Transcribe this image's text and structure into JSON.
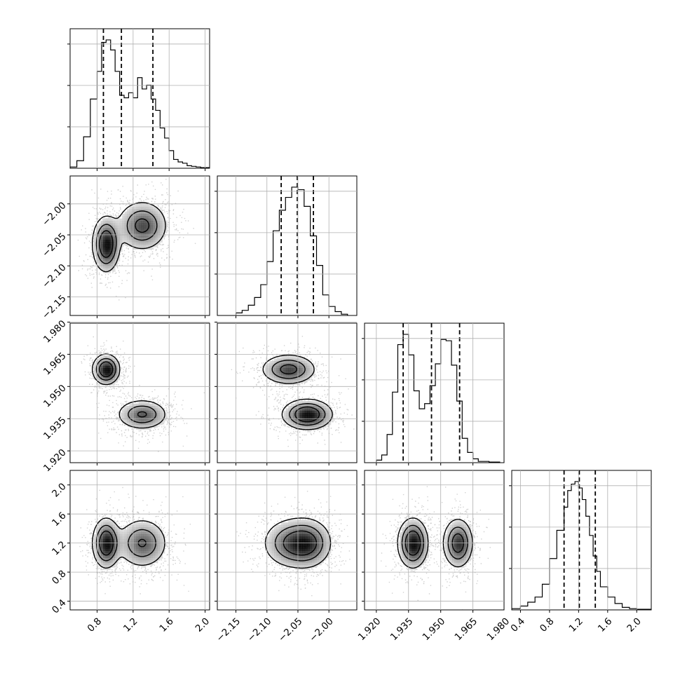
{
  "chart_data": {
    "type": "corner",
    "title": "",
    "grid": true,
    "n_params": 4,
    "params": [
      {
        "range": [
          0.5,
          2.05
        ],
        "ticks": [
          0.8,
          1.2,
          1.6,
          2.0
        ],
        "tick_labels": [
          "0.8",
          "1.2",
          "1.6",
          "2.0"
        ],
        "quantiles": [
          0.87,
          1.07,
          1.42
        ],
        "hist_bin_edges": [
          0.5,
          0.575,
          0.65,
          0.725,
          0.8,
          0.85,
          0.9,
          0.95,
          1.0,
          1.05,
          1.1,
          1.15,
          1.2,
          1.25,
          1.3,
          1.35,
          1.4,
          1.45,
          1.5,
          1.55,
          1.6,
          1.65,
          1.7,
          1.75,
          1.8,
          1.85,
          1.9,
          1.95,
          2.05
        ],
        "hist_counts": [
          0.01,
          0.06,
          0.25,
          0.55,
          0.77,
          1.0,
          1.02,
          0.94,
          0.77,
          0.58,
          0.56,
          0.6,
          0.56,
          0.72,
          0.63,
          0.66,
          0.55,
          0.46,
          0.32,
          0.24,
          0.14,
          0.07,
          0.05,
          0.04,
          0.02,
          0.015,
          0.01,
          0.005
        ]
      },
      {
        "range": [
          -2.18,
          -1.955
        ],
        "ticks": [
          -2.15,
          -2.1,
          -2.05,
          -2.0
        ],
        "tick_labels": [
          "−2.15",
          "−2.10",
          "−2.05",
          "−2.00"
        ],
        "quantiles": [
          -2.077,
          -2.051,
          -2.025
        ],
        "hist_bin_edges": [
          -2.15,
          -2.14,
          -2.13,
          -2.12,
          -2.11,
          -2.1,
          -2.09,
          -2.08,
          -2.07,
          -2.06,
          -2.05,
          -2.04,
          -2.03,
          -2.02,
          -2.01,
          -2.0,
          -1.99,
          -1.98,
          -1.97
        ],
        "hist_counts": [
          0.02,
          0.04,
          0.08,
          0.14,
          0.24,
          0.42,
          0.66,
          0.82,
          0.92,
          1.0,
          0.98,
          0.85,
          0.62,
          0.39,
          0.16,
          0.07,
          0.03,
          0.01
        ]
      },
      {
        "range": [
          1.9145,
          1.9795
        ],
        "ticks": [
          1.92,
          1.935,
          1.95,
          1.965,
          1.98
        ],
        "tick_labels": [
          "1.920",
          "1.935",
          "1.950",
          "1.965",
          "1.980"
        ],
        "quantiles": [
          1.9325,
          1.9457,
          1.9588
        ],
        "hist_bin_edges": [
          1.92,
          1.9225,
          1.925,
          1.9275,
          1.93,
          1.9325,
          1.935,
          1.9375,
          1.94,
          1.9425,
          1.945,
          1.9475,
          1.95,
          1.9525,
          1.955,
          1.9575,
          1.96,
          1.9625,
          1.965,
          1.9675,
          1.97,
          1.9725,
          1.975,
          1.9775
        ],
        "hist_counts": [
          0.02,
          0.06,
          0.22,
          0.55,
          0.92,
          1.0,
          0.84,
          0.56,
          0.42,
          0.46,
          0.6,
          0.77,
          0.96,
          0.95,
          0.76,
          0.48,
          0.19,
          0.08,
          0.03,
          0.01,
          0.01,
          0.005,
          0.005
        ]
      },
      {
        "range": [
          0.28,
          2.2
        ],
        "ticks": [
          0.4,
          0.8,
          1.2,
          1.6,
          2.0
        ],
        "tick_labels": [
          "0.4",
          "0.8",
          "1.2",
          "1.6",
          "2.0"
        ],
        "quantiles": [
          1.0,
          1.21,
          1.43
        ],
        "hist_bin_edges": [
          0.28,
          0.4,
          0.5,
          0.6,
          0.7,
          0.8,
          0.9,
          1.0,
          1.05,
          1.1,
          1.15,
          1.2,
          1.25,
          1.3,
          1.35,
          1.4,
          1.45,
          1.5,
          1.6,
          1.7,
          1.8,
          1.9,
          2.0,
          2.2
        ],
        "hist_counts": [
          0.01,
          0.03,
          0.06,
          0.1,
          0.2,
          0.4,
          0.62,
          0.8,
          0.93,
          0.98,
          1.0,
          0.95,
          0.86,
          0.73,
          0.58,
          0.42,
          0.3,
          0.18,
          0.1,
          0.05,
          0.02,
          0.01,
          0.005
        ]
      }
    ],
    "components": [
      {
        "weight": 0.45,
        "mean": [
          0.9,
          -2.065,
          1.958,
          1.2
        ],
        "sd": [
          0.075,
          0.022,
          0.0035,
          0.17
        ]
      },
      {
        "weight": 0.55,
        "mean": [
          1.3,
          -2.035,
          1.937,
          1.2
        ],
        "sd": [
          0.14,
          0.02,
          0.0035,
          0.17
        ]
      }
    ],
    "colors": {
      "points": "#000000",
      "contour": "#000000",
      "hist": "#000000",
      "grid": "#b0b0b0",
      "axes": "#000000"
    }
  }
}
